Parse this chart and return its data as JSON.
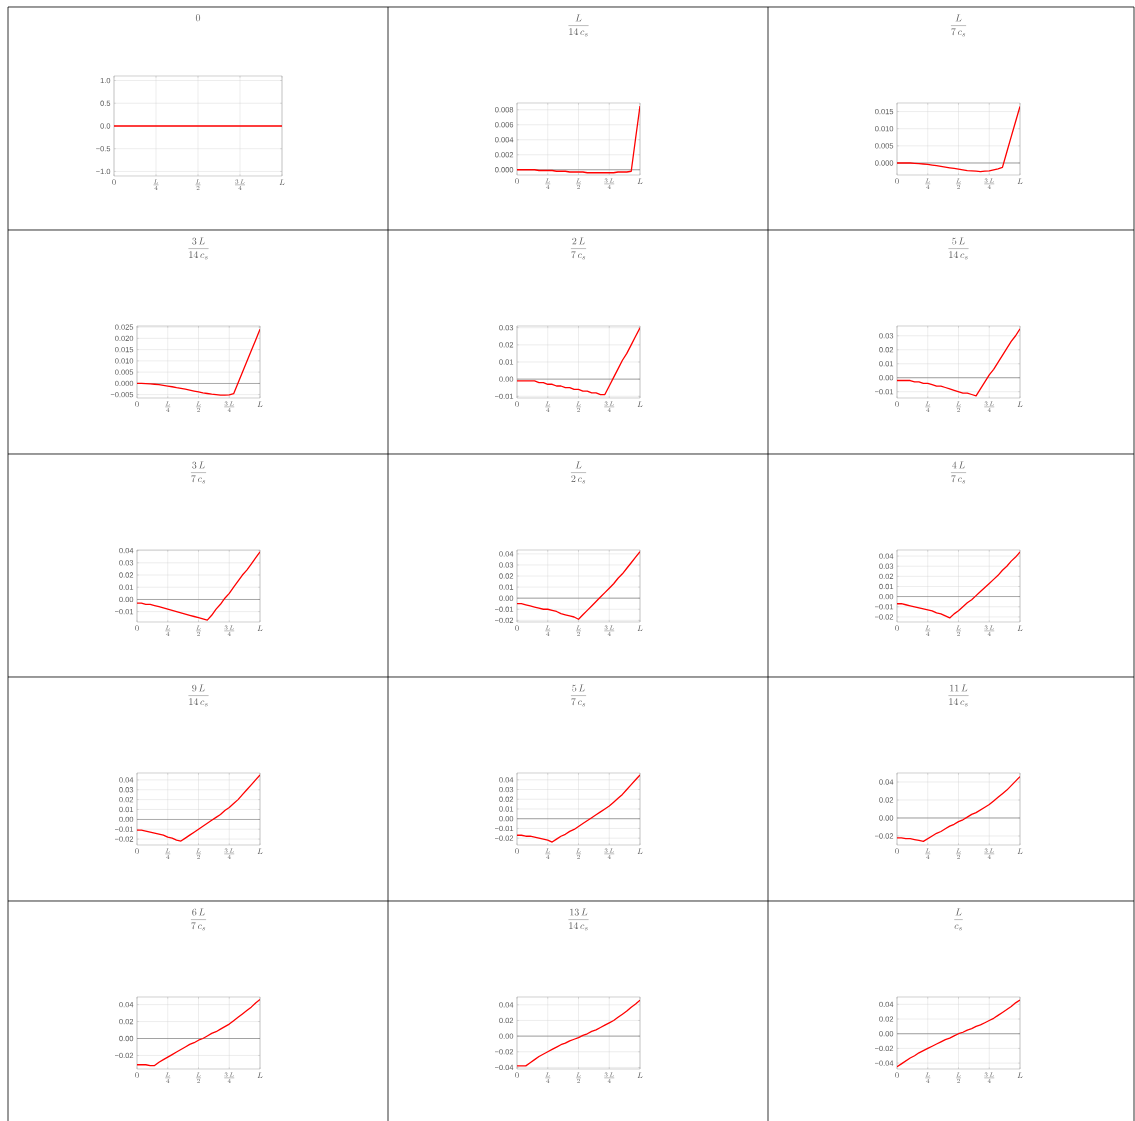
{
  "chart_data": [
    {
      "type": "line",
      "title": "0",
      "categories": [
        "0",
        null,
        null,
        null,
        null,
        null,
        null,
        "\\frac{L}{4}",
        null,
        null,
        null,
        null,
        null,
        null,
        "\\frac{L}{2}",
        null,
        null,
        null,
        null,
        null,
        null,
        "\\frac{3\\,L}{4}",
        null,
        null,
        null,
        null,
        null,
        null,
        "L"
      ],
      "series": [
        {
          "color": "#ff0000",
          "values": [
            0,
            0,
            0,
            0,
            0,
            0,
            0,
            0,
            0,
            0,
            0,
            0,
            0,
            0,
            0,
            0,
            0,
            0,
            0,
            0,
            0,
            0,
            0,
            0,
            0,
            0,
            0,
            0,
            0
          ]
        }
      ],
      "ylim": [
        -1.1,
        1.1
      ],
      "yticks": [
        {
          "value": -1,
          "label": "−1.0"
        },
        {
          "value": -0.5,
          "label": "−0.5"
        },
        {
          "value": 0,
          "label": "0.0"
        },
        {
          "value": 0.5,
          "label": "0.5"
        },
        {
          "value": 1,
          "label": "1.0"
        }
      ],
      "grid": true
    },
    {
      "type": "line",
      "title": "\\frac{L}{14\\,c_s}",
      "categories": [
        "0",
        null,
        null,
        null,
        null,
        null,
        null,
        "\\frac{L}{4}",
        null,
        null,
        null,
        null,
        null,
        null,
        "\\frac{L}{2}",
        null,
        null,
        null,
        null,
        null,
        null,
        "\\frac{3\\,L}{4}",
        null,
        null,
        null,
        null,
        null,
        null,
        "L"
      ],
      "series": [
        {
          "color": "#ff0000",
          "values": [
            0,
            0,
            0,
            0,
            0,
            -0.0001,
            -0.0001,
            -0.0001,
            -0.0001,
            -0.0002,
            -0.0002,
            -0.0002,
            -0.0003,
            -0.0003,
            -0.0003,
            -0.0003,
            -0.0004,
            -0.0004,
            -0.0004,
            -0.0004,
            -0.0004,
            -0.0004,
            -0.0004,
            -0.0003,
            -0.0003,
            -0.0003,
            -0.0002,
            0.0042,
            0.0085
          ]
        }
      ],
      "ylim": [
        -0.0007,
        0.0089
      ],
      "yticks": [
        {
          "value": 0,
          "label": "0.000"
        },
        {
          "value": 0.002,
          "label": "0.002"
        },
        {
          "value": 0.004,
          "label": "0.004"
        },
        {
          "value": 0.006,
          "label": "0.006"
        },
        {
          "value": 0.008,
          "label": "0.008"
        }
      ],
      "grid": true,
      "ref_lines": [
        {
          "axis": "y",
          "value": 0,
          "color": "#808080"
        }
      ]
    },
    {
      "type": "line",
      "title": "\\frac{L}{7\\,c_s}",
      "categories": [
        "0",
        null,
        null,
        null,
        null,
        null,
        null,
        "\\frac{L}{4}",
        null,
        null,
        null,
        null,
        null,
        null,
        "\\frac{L}{2}",
        null,
        null,
        null,
        null,
        null,
        null,
        "\\frac{3\\,L}{4}",
        null,
        null,
        null,
        null,
        null,
        null,
        "L"
      ],
      "series": [
        {
          "color": "#ff0000",
          "values": [
            0,
            0,
            0,
            0,
            -0.0001,
            -0.0002,
            -0.0003,
            -0.0004,
            -0.0006,
            -0.0008,
            -0.001,
            -0.0012,
            -0.0014,
            -0.0016,
            -0.0018,
            -0.002,
            -0.0022,
            -0.0023,
            -0.0024,
            -0.0025,
            -0.0024,
            -0.0023,
            -0.002,
            -0.0017,
            -0.0013,
            0.0032,
            0.0077,
            0.0121,
            0.0165
          ]
        }
      ],
      "ylim": [
        -0.0035,
        0.0175
      ],
      "yticks": [
        {
          "value": 0,
          "label": "0.000"
        },
        {
          "value": 0.005,
          "label": "0.005"
        },
        {
          "value": 0.01,
          "label": "0.010"
        },
        {
          "value": 0.015,
          "label": "0.015"
        }
      ],
      "grid": true,
      "ref_lines": [
        {
          "axis": "y",
          "value": 0,
          "color": "#808080"
        }
      ]
    },
    {
      "type": "line",
      "title": "\\frac{3\\,L}{14\\,c_s}",
      "categories": [
        "0",
        null,
        null,
        null,
        null,
        null,
        null,
        "\\frac{L}{4}",
        null,
        null,
        null,
        null,
        null,
        null,
        "\\frac{L}{2}",
        null,
        null,
        null,
        null,
        null,
        null,
        "\\frac{3\\,L}{4}",
        null,
        null,
        null,
        null,
        null,
        null,
        "L"
      ],
      "series": [
        {
          "color": "#ff0000",
          "values": [
            0,
            0,
            -0.0001,
            -0.0002,
            -0.0004,
            -0.0006,
            -0.0009,
            -0.0012,
            -0.0015,
            -0.0019,
            -0.0022,
            -0.0026,
            -0.003,
            -0.0034,
            -0.0038,
            -0.0042,
            -0.0045,
            -0.0048,
            -0.005,
            -0.0052,
            -0.0052,
            -0.0051,
            -0.0046,
            0.0002,
            0.0049,
            0.0097,
            0.0145,
            0.0192,
            0.024
          ]
        }
      ],
      "ylim": [
        -0.0065,
        0.0255
      ],
      "yticks": [
        {
          "value": -0.005,
          "label": "−0.005"
        },
        {
          "value": 0,
          "label": "0.000"
        },
        {
          "value": 0.005,
          "label": "0.005"
        },
        {
          "value": 0.01,
          "label": "0.010"
        },
        {
          "value": 0.015,
          "label": "0.015"
        },
        {
          "value": 0.02,
          "label": "0.020"
        },
        {
          "value": 0.025,
          "label": "0.025"
        }
      ],
      "grid": true,
      "ref_lines": [
        {
          "axis": "y",
          "value": 0,
          "color": "#808080"
        }
      ]
    },
    {
      "type": "line",
      "title": "\\frac{2\\,L}{7\\,c_s}",
      "categories": [
        "0",
        null,
        null,
        null,
        null,
        null,
        null,
        "\\frac{L}{4}",
        null,
        null,
        null,
        null,
        null,
        null,
        "\\frac{L}{2}",
        null,
        null,
        null,
        null,
        null,
        null,
        "\\frac{3\\,L}{4}",
        null,
        null,
        null,
        null,
        null,
        null,
        "L"
      ],
      "series": [
        {
          "color": "#ff0000",
          "values": [
            -0.001,
            -0.001,
            -0.001,
            -0.001,
            -0.001,
            -0.002,
            -0.002,
            -0.003,
            -0.003,
            -0.004,
            -0.004,
            -0.005,
            -0.005,
            -0.006,
            -0.006,
            -0.007,
            -0.007,
            -0.008,
            -0.008,
            -0.009,
            -0.009,
            -0.004,
            0.001,
            0.006,
            0.011,
            0.015,
            0.02,
            0.025,
            0.03
          ]
        }
      ],
      "ylim": [
        -0.011,
        0.031
      ],
      "yticks": [
        {
          "value": -0.01,
          "label": "−0.01"
        },
        {
          "value": 0,
          "label": "0.00"
        },
        {
          "value": 0.01,
          "label": "0.01"
        },
        {
          "value": 0.02,
          "label": "0.02"
        },
        {
          "value": 0.03,
          "label": "0.03"
        }
      ],
      "grid": true,
      "ref_lines": [
        {
          "axis": "y",
          "value": 0,
          "color": "#808080"
        }
      ]
    },
    {
      "type": "line",
      "title": "\\frac{5\\,L}{14\\,c_s}",
      "categories": [
        "0",
        null,
        null,
        null,
        null,
        null,
        null,
        "\\frac{L}{4}",
        null,
        null,
        null,
        null,
        null,
        null,
        "\\frac{L}{2}",
        null,
        null,
        null,
        null,
        null,
        null,
        "\\frac{3\\,L}{4}",
        null,
        null,
        null,
        null,
        null,
        null,
        "L"
      ],
      "series": [
        {
          "color": "#ff0000",
          "values": [
            -0.002,
            -0.002,
            -0.002,
            -0.002,
            -0.003,
            -0.003,
            -0.004,
            -0.004,
            -0.005,
            -0.006,
            -0.006,
            -0.007,
            -0.008,
            -0.009,
            -0.01,
            -0.011,
            -0.011,
            -0.012,
            -0.013,
            -0.008,
            -0.003,
            0.002,
            0.006,
            0.011,
            0.016,
            0.021,
            0.026,
            0.03,
            0.035
          ]
        }
      ],
      "ylim": [
        -0.0145,
        0.037
      ],
      "yticks": [
        {
          "value": -0.01,
          "label": "−0.01"
        },
        {
          "value": 0,
          "label": "0.00"
        },
        {
          "value": 0.01,
          "label": "0.01"
        },
        {
          "value": 0.02,
          "label": "0.02"
        },
        {
          "value": 0.03,
          "label": "0.03"
        }
      ],
      "grid": true,
      "ref_lines": [
        {
          "axis": "y",
          "value": 0,
          "color": "#808080"
        }
      ]
    },
    {
      "type": "line",
      "title": "\\frac{3\\,L}{7\\,c_s}",
      "categories": [
        "0",
        null,
        null,
        null,
        null,
        null,
        null,
        "\\frac{L}{4}",
        null,
        null,
        null,
        null,
        null,
        null,
        "\\frac{L}{2}",
        null,
        null,
        null,
        null,
        null,
        null,
        "\\frac{3\\,L}{4}",
        null,
        null,
        null,
        null,
        null,
        null,
        "L"
      ],
      "series": [
        {
          "color": "#ff0000",
          "values": [
            -0.003,
            -0.003,
            -0.004,
            -0.004,
            -0.005,
            -0.006,
            -0.007,
            -0.008,
            -0.009,
            -0.01,
            -0.011,
            -0.012,
            -0.013,
            -0.014,
            -0.015,
            -0.016,
            -0.017,
            -0.013,
            -0.008,
            -0.004,
            0.001,
            0.005,
            0.01,
            0.015,
            0.02,
            0.024,
            0.029,
            0.034,
            0.039
          ]
        }
      ],
      "ylim": [
        -0.0185,
        0.0405
      ],
      "yticks": [
        {
          "value": -0.01,
          "label": "−0.01"
        },
        {
          "value": 0,
          "label": "0.00"
        },
        {
          "value": 0.01,
          "label": "0.01"
        },
        {
          "value": 0.02,
          "label": "0.02"
        },
        {
          "value": 0.03,
          "label": "0.03"
        },
        {
          "value": 0.04,
          "label": "0.04"
        }
      ],
      "grid": true,
      "ref_lines": [
        {
          "axis": "y",
          "value": 0,
          "color": "#808080"
        }
      ]
    },
    {
      "type": "line",
      "title": "\\frac{L}{2\\,c_s}",
      "categories": [
        "0",
        null,
        null,
        null,
        null,
        null,
        null,
        "\\frac{L}{4}",
        null,
        null,
        null,
        null,
        null,
        null,
        "\\frac{L}{2}",
        null,
        null,
        null,
        null,
        null,
        null,
        "\\frac{3\\,L}{4}",
        null,
        null,
        null,
        null,
        null,
        null,
        "L"
      ],
      "series": [
        {
          "color": "#ff0000",
          "values": [
            -0.005,
            -0.005,
            -0.006,
            -0.007,
            -0.008,
            -0.009,
            -0.01,
            -0.01,
            -0.011,
            -0.012,
            -0.014,
            -0.015,
            -0.016,
            -0.017,
            -0.019,
            -0.015,
            -0.011,
            -0.007,
            -0.003,
            0.001,
            0.005,
            0.009,
            0.013,
            0.018,
            0.022,
            0.027,
            0.032,
            0.037,
            0.042
          ]
        }
      ],
      "ylim": [
        -0.0215,
        0.0435
      ],
      "yticks": [
        {
          "value": -0.02,
          "label": "−0.02"
        },
        {
          "value": -0.01,
          "label": "−0.01"
        },
        {
          "value": 0,
          "label": "0.00"
        },
        {
          "value": 0.01,
          "label": "0.01"
        },
        {
          "value": 0.02,
          "label": "0.02"
        },
        {
          "value": 0.03,
          "label": "0.03"
        },
        {
          "value": 0.04,
          "label": "0.04"
        }
      ],
      "grid": true,
      "ref_lines": [
        {
          "axis": "y",
          "value": 0,
          "color": "#808080"
        }
      ]
    },
    {
      "type": "line",
      "title": "\\frac{4\\,L}{7\\,c_s}",
      "categories": [
        "0",
        null,
        null,
        null,
        null,
        null,
        null,
        "\\frac{L}{4}",
        null,
        null,
        null,
        null,
        null,
        null,
        "\\frac{L}{2}",
        null,
        null,
        null,
        null,
        null,
        null,
        "\\frac{3\\,L}{4}",
        null,
        null,
        null,
        null,
        null,
        null,
        "L"
      ],
      "series": [
        {
          "color": "#ff0000",
          "values": [
            -0.007,
            -0.007,
            -0.008,
            -0.009,
            -0.01,
            -0.011,
            -0.012,
            -0.013,
            -0.014,
            -0.016,
            -0.017,
            -0.019,
            -0.021,
            -0.017,
            -0.014,
            -0.01,
            -0.006,
            -0.003,
            0.001,
            0.005,
            0.009,
            0.013,
            0.017,
            0.021,
            0.026,
            0.03,
            0.035,
            0.039,
            0.044
          ]
        }
      ],
      "ylim": [
        -0.025,
        0.046
      ],
      "yticks": [
        {
          "value": -0.02,
          "label": "−0.02"
        },
        {
          "value": -0.01,
          "label": "−0.01"
        },
        {
          "value": 0,
          "label": "0.00"
        },
        {
          "value": 0.01,
          "label": "0.01"
        },
        {
          "value": 0.02,
          "label": "0.02"
        },
        {
          "value": 0.03,
          "label": "0.03"
        },
        {
          "value": 0.04,
          "label": "0.04"
        }
      ],
      "grid": true,
      "ref_lines": [
        {
          "axis": "y",
          "value": 0,
          "color": "#808080"
        }
      ]
    },
    {
      "type": "line",
      "title": "\\frac{9\\,L}{14\\,c_s}",
      "categories": [
        "0",
        null,
        null,
        null,
        null,
        null,
        null,
        "\\frac{L}{4}",
        null,
        null,
        null,
        null,
        null,
        null,
        "\\frac{L}{2}",
        null,
        null,
        null,
        null,
        null,
        null,
        "\\frac{3\\,L}{4}",
        null,
        null,
        null,
        null,
        null,
        null,
        "L"
      ],
      "series": [
        {
          "color": "#ff0000",
          "values": [
            -0.011,
            -0.011,
            -0.012,
            -0.013,
            -0.014,
            -0.015,
            -0.016,
            -0.018,
            -0.019,
            -0.021,
            -0.022,
            -0.019,
            -0.016,
            -0.013,
            -0.01,
            -0.007,
            -0.004,
            -0.001,
            0.002,
            0.005,
            0.009,
            0.012,
            0.016,
            0.02,
            0.025,
            0.03,
            0.035,
            0.04,
            0.045
          ]
        }
      ],
      "ylim": [
        -0.026,
        0.047
      ],
      "yticks": [
        {
          "value": -0.02,
          "label": "−0.02"
        },
        {
          "value": -0.01,
          "label": "−0.01"
        },
        {
          "value": 0,
          "label": "0.00"
        },
        {
          "value": 0.01,
          "label": "0.01"
        },
        {
          "value": 0.02,
          "label": "0.02"
        },
        {
          "value": 0.03,
          "label": "0.03"
        },
        {
          "value": 0.04,
          "label": "0.04"
        }
      ],
      "grid": true,
      "ref_lines": [
        {
          "axis": "y",
          "value": 0,
          "color": "#808080"
        }
      ]
    },
    {
      "type": "line",
      "title": "\\frac{5\\,L}{7\\,c_s}",
      "categories": [
        "0",
        null,
        null,
        null,
        null,
        null,
        null,
        "\\frac{L}{4}",
        null,
        null,
        null,
        null,
        null,
        null,
        "\\frac{L}{2}",
        null,
        null,
        null,
        null,
        null,
        null,
        "\\frac{3\\,L}{4}",
        null,
        null,
        null,
        null,
        null,
        null,
        "L"
      ],
      "series": [
        {
          "color": "#ff0000",
          "values": [
            -0.017,
            -0.017,
            -0.018,
            -0.018,
            -0.019,
            -0.02,
            -0.021,
            -0.022,
            -0.024,
            -0.021,
            -0.018,
            -0.016,
            -0.013,
            -0.011,
            -0.008,
            -0.005,
            -0.002,
            0.001,
            0.004,
            0.007,
            0.01,
            0.013,
            0.017,
            0.021,
            0.025,
            0.03,
            0.035,
            0.04,
            0.045
          ]
        }
      ],
      "ylim": [
        -0.027,
        0.047
      ],
      "yticks": [
        {
          "value": -0.02,
          "label": "−0.02"
        },
        {
          "value": -0.01,
          "label": "−0.01"
        },
        {
          "value": 0,
          "label": "0.00"
        },
        {
          "value": 0.01,
          "label": "0.01"
        },
        {
          "value": 0.02,
          "label": "0.02"
        },
        {
          "value": 0.03,
          "label": "0.03"
        },
        {
          "value": 0.04,
          "label": "0.04"
        }
      ],
      "grid": true,
      "ref_lines": [
        {
          "axis": "y",
          "value": 0,
          "color": "#808080"
        }
      ]
    },
    {
      "type": "line",
      "title": "\\frac{11\\,L}{14\\,c_s}",
      "categories": [
        "0",
        null,
        null,
        null,
        null,
        null,
        null,
        "\\frac{L}{4}",
        null,
        null,
        null,
        null,
        null,
        null,
        "\\frac{L}{2}",
        null,
        null,
        null,
        null,
        null,
        null,
        "\\frac{3\\,L}{4}",
        null,
        null,
        null,
        null,
        null,
        null,
        "L"
      ],
      "series": [
        {
          "color": "#ff0000",
          "values": [
            -0.022,
            -0.022,
            -0.023,
            -0.023,
            -0.024,
            -0.025,
            -0.026,
            -0.023,
            -0.02,
            -0.017,
            -0.015,
            -0.012,
            -0.009,
            -0.007,
            -0.004,
            -0.002,
            0.001,
            0.004,
            0.006,
            0.009,
            0.012,
            0.015,
            0.019,
            0.023,
            0.027,
            0.031,
            0.036,
            0.041,
            0.046
          ]
        }
      ],
      "ylim": [
        -0.03,
        0.05
      ],
      "yticks": [
        {
          "value": -0.02,
          "label": "−0.02"
        },
        {
          "value": 0,
          "label": "0.00"
        },
        {
          "value": 0.02,
          "label": "0.02"
        },
        {
          "value": 0.04,
          "label": "0.04"
        }
      ],
      "grid": true,
      "ref_lines": [
        {
          "axis": "y",
          "value": 0,
          "color": "#808080"
        }
      ]
    },
    {
      "type": "line",
      "title": "\\frac{6\\,L}{7\\,c_s}",
      "categories": [
        "0",
        null,
        null,
        null,
        null,
        null,
        null,
        "\\frac{L}{4}",
        null,
        null,
        null,
        null,
        null,
        null,
        "\\frac{L}{2}",
        null,
        null,
        null,
        null,
        null,
        null,
        "\\frac{3\\,L}{4}",
        null,
        null,
        null,
        null,
        null,
        null,
        "L"
      ],
      "series": [
        {
          "color": "#ff0000",
          "values": [
            -0.031,
            -0.031,
            -0.031,
            -0.032,
            -0.032,
            -0.028,
            -0.025,
            -0.022,
            -0.019,
            -0.016,
            -0.013,
            -0.01,
            -0.007,
            -0.005,
            -0.002,
            0,
            0.003,
            0.006,
            0.008,
            0.011,
            0.014,
            0.017,
            0.021,
            0.025,
            0.029,
            0.033,
            0.037,
            0.042,
            0.046
          ]
        }
      ],
      "ylim": [
        -0.036,
        0.049
      ],
      "yticks": [
        {
          "value": -0.02,
          "label": "−0.02"
        },
        {
          "value": 0,
          "label": "0.00"
        },
        {
          "value": 0.02,
          "label": "0.02"
        },
        {
          "value": 0.04,
          "label": "0.04"
        }
      ],
      "grid": true,
      "ref_lines": [
        {
          "axis": "y",
          "value": 0,
          "color": "#808080"
        }
      ]
    },
    {
      "type": "line",
      "title": "\\frac{13\\,L}{14\\,c_s}",
      "categories": [
        "0",
        null,
        null,
        null,
        null,
        null,
        null,
        "\\frac{L}{4}",
        null,
        null,
        null,
        null,
        null,
        null,
        "\\frac{L}{2}",
        null,
        null,
        null,
        null,
        null,
        null,
        "\\frac{3\\,L}{4}",
        null,
        null,
        null,
        null,
        null,
        null,
        "L"
      ],
      "series": [
        {
          "color": "#ff0000",
          "values": [
            -0.038,
            -0.038,
            -0.038,
            -0.034,
            -0.03,
            -0.026,
            -0.023,
            -0.02,
            -0.017,
            -0.014,
            -0.011,
            -0.009,
            -0.006,
            -0.004,
            -0.002,
            0.001,
            0.003,
            0.006,
            0.008,
            0.011,
            0.014,
            0.017,
            0.02,
            0.024,
            0.028,
            0.032,
            0.037,
            0.041,
            0.046
          ]
        }
      ],
      "ylim": [
        -0.042,
        0.05
      ],
      "yticks": [
        {
          "value": -0.04,
          "label": "−0.04"
        },
        {
          "value": -0.02,
          "label": "−0.02"
        },
        {
          "value": 0,
          "label": "0.00"
        },
        {
          "value": 0.02,
          "label": "0.02"
        },
        {
          "value": 0.04,
          "label": "0.04"
        }
      ],
      "grid": true,
      "ref_lines": [
        {
          "axis": "y",
          "value": 0,
          "color": "#808080"
        }
      ]
    },
    {
      "type": "line",
      "title": "\\frac{L}{c_s}",
      "categories": [
        "0",
        null,
        null,
        null,
        null,
        null,
        null,
        "\\frac{L}{4}",
        null,
        null,
        null,
        null,
        null,
        null,
        "\\frac{L}{2}",
        null,
        null,
        null,
        null,
        null,
        null,
        "\\frac{3\\,L}{4}",
        null,
        null,
        null,
        null,
        null,
        null,
        "L"
      ],
      "series": [
        {
          "color": "#ff0000",
          "values": [
            -0.045,
            -0.041,
            -0.037,
            -0.033,
            -0.03,
            -0.026,
            -0.023,
            -0.02,
            -0.017,
            -0.014,
            -0.011,
            -0.008,
            -0.006,
            -0.003,
            0,
            0.002,
            0.005,
            0.007,
            0.01,
            0.012,
            0.015,
            0.018,
            0.021,
            0.025,
            0.029,
            0.033,
            0.037,
            0.042,
            0.046
          ]
        }
      ],
      "ylim": [
        -0.048,
        0.05
      ],
      "yticks": [
        {
          "value": -0.04,
          "label": "−0.04"
        },
        {
          "value": -0.02,
          "label": "−0.02"
        },
        {
          "value": 0,
          "label": "0.00"
        },
        {
          "value": 0.02,
          "label": "0.02"
        },
        {
          "value": 0.04,
          "label": "0.04"
        }
      ],
      "grid": true,
      "ref_lines": [
        {
          "axis": "y",
          "value": 0,
          "color": "#808080"
        }
      ]
    }
  ]
}
